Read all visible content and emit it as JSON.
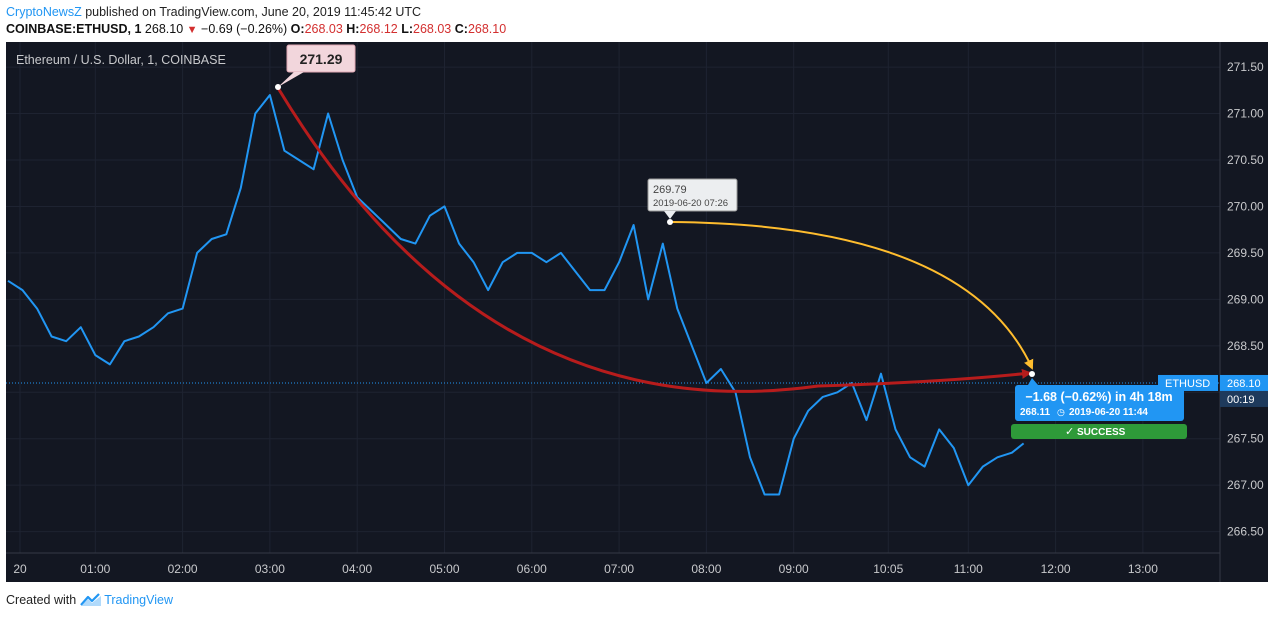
{
  "header": {
    "brand": "CryptoNewsZ",
    "published_text": " published on TradingView.com, June 20, 2019 11:45:42 UTC",
    "symbol": "COINBASE:ETHUSD, 1",
    "last": "268.10",
    "change": "−0.69 (−0.26%)",
    "o_label": "O:",
    "o_value": "268.03",
    "h_label": "H:",
    "h_value": "268.12",
    "l_label": "L:",
    "l_value": "268.03",
    "c_label": "C:",
    "c_value": "268.10"
  },
  "footer": {
    "created_with": "Created with",
    "brand": "TradingView"
  },
  "colors": {
    "background": "#131722",
    "price_line": "#2196f3",
    "red_arrow": "#b71c1c",
    "yellow_arrow": "#ffbd2e",
    "success": "#2e9a39",
    "axis_text": "#c8c9cc",
    "grid": "#1e2331"
  },
  "chart_data": {
    "type": "line",
    "title": "Ethereum / U.S. Dollar, 1, COINBASE",
    "series": [
      {
        "name": "ETHUSD",
        "x": [
          "00:00",
          "00:10",
          "00:20",
          "00:30",
          "00:40",
          "00:50",
          "01:00",
          "01:10",
          "01:20",
          "01:30",
          "01:40",
          "01:50",
          "02:00",
          "02:10",
          "02:20",
          "02:30",
          "02:40",
          "02:50",
          "03:00",
          "03:10",
          "03:20",
          "03:30",
          "03:40",
          "03:50",
          "04:00",
          "04:10",
          "04:20",
          "04:30",
          "04:40",
          "04:50",
          "05:00",
          "05:10",
          "05:20",
          "05:30",
          "05:40",
          "05:50",
          "06:00",
          "06:10",
          "06:20",
          "06:30",
          "06:40",
          "06:50",
          "07:00",
          "07:10",
          "07:20",
          "07:30",
          "07:40",
          "07:50",
          "08:00",
          "08:10",
          "08:20",
          "08:30",
          "08:40",
          "08:50",
          "09:00",
          "09:10",
          "09:20",
          "09:30",
          "09:40",
          "09:50",
          "10:00",
          "10:10",
          "10:20",
          "10:30",
          "10:40",
          "10:50",
          "11:00",
          "11:10",
          "11:20",
          "11:30",
          "11:38"
        ],
        "values": [
          269.2,
          269.1,
          268.9,
          268.6,
          268.55,
          268.7,
          268.4,
          268.3,
          268.55,
          268.6,
          268.7,
          268.85,
          268.9,
          269.5,
          269.65,
          269.7,
          270.2,
          271.0,
          271.2,
          270.6,
          270.5,
          270.4,
          271.0,
          270.5,
          270.1,
          269.95,
          269.8,
          269.65,
          269.6,
          269.9,
          270.0,
          269.6,
          269.4,
          269.1,
          269.4,
          269.5,
          269.5,
          269.4,
          269.5,
          269.3,
          269.1,
          269.1,
          269.4,
          269.8,
          269.0,
          269.6,
          268.9,
          268.5,
          268.1,
          268.25,
          268.0,
          267.3,
          266.9,
          266.9,
          267.5,
          267.8,
          267.95,
          268.0,
          268.1,
          267.7,
          268.2,
          267.6,
          267.3,
          267.2,
          267.6,
          267.4,
          267.0,
          267.2,
          267.3,
          267.35,
          267.45
        ]
      }
    ],
    "x_ticks": [
      "20",
      "01:00",
      "02:00",
      "03:00",
      "04:00",
      "05:00",
      "06:00",
      "07:00",
      "08:00",
      "09:00",
      "10:05",
      "11:00",
      "12:00",
      "13:00"
    ],
    "y_ticks": [
      "266.50",
      "267.00",
      "267.50",
      "268.00",
      "268.50",
      "269.00",
      "269.50",
      "270.00",
      "270.50",
      "271.00",
      "271.50"
    ],
    "ylim": [
      266.27,
      271.77
    ],
    "current_price": {
      "label": "ETHUSD",
      "value": "268.10",
      "countdown": "00:19"
    },
    "annotations": {
      "high_label": "271.29",
      "point_label": {
        "price": "269.79",
        "time": "2019-06-20 07:26"
      },
      "measure": {
        "text": "−1.68 (−0.62%) in 4h 18m",
        "price": "268.11",
        "time": "2019-06-20  11:44"
      },
      "success": "SUCCESS"
    }
  }
}
